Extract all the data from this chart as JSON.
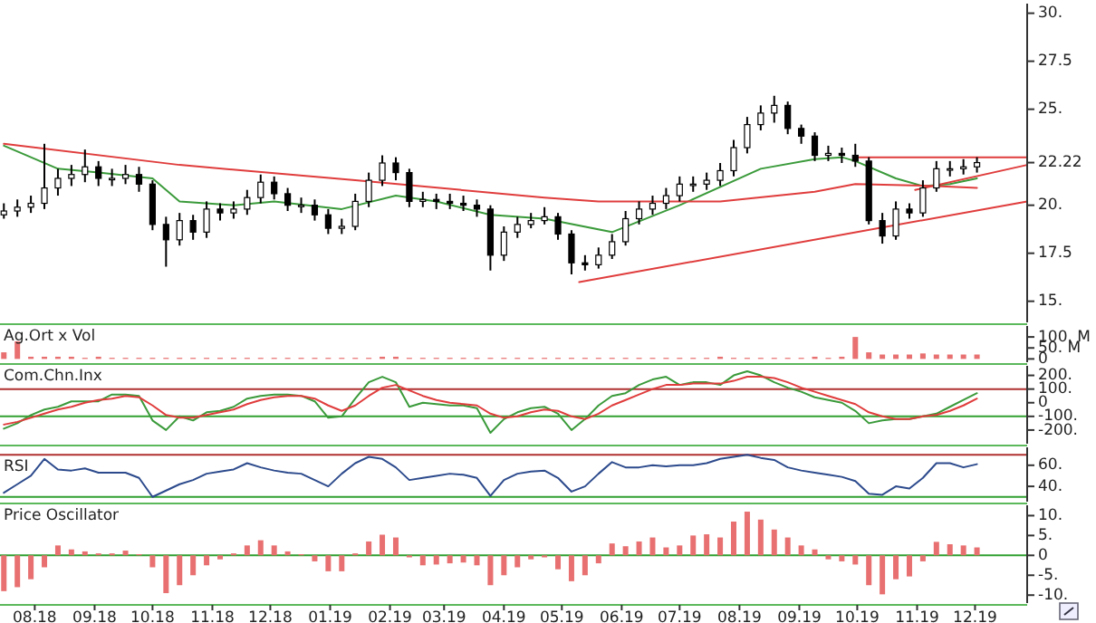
{
  "chart_data": [
    {
      "type": "candlestick",
      "color": "#000000",
      "tick_labels": "y",
      "xlim": [
        "2018-07-14",
        "2019-12-28"
      ],
      "ylim": [
        13.9,
        30.5
      ],
      "yticks": [
        {
          "value": 30,
          "label": "30."
        },
        27.5,
        {
          "value": 25,
          "label": "25."
        },
        22.22,
        {
          "value": 20,
          "label": "20."
        },
        17.5,
        {
          "value": 15,
          "label": "15."
        }
      ],
      "x": [
        "2018-07-16",
        "2018-07-23",
        "2018-07-30",
        "2018-08-06",
        "2018-08-13",
        "2018-08-20",
        "2018-08-27",
        "2018-09-03",
        "2018-09-10",
        "2018-09-17",
        "2018-09-24",
        "2018-10-01",
        "2018-10-08",
        "2018-10-15",
        "2018-10-22",
        "2018-10-29",
        "2018-11-05",
        "2018-11-12",
        "2018-11-19",
        "2018-11-26",
        "2018-12-03",
        "2018-12-10",
        "2018-12-17",
        "2018-12-24",
        "2018-12-31",
        "2019-01-07",
        "2019-01-14",
        "2019-01-21",
        "2019-01-28",
        "2019-02-04",
        "2019-02-11",
        "2019-02-18",
        "2019-02-25",
        "2019-03-04",
        "2019-03-11",
        "2019-03-18",
        "2019-03-25",
        "2019-04-01",
        "2019-04-08",
        "2019-04-15",
        "2019-04-22",
        "2019-04-29",
        "2019-05-06",
        "2019-05-13",
        "2019-05-20",
        "2019-05-27",
        "2019-06-03",
        "2019-06-10",
        "2019-06-17",
        "2019-06-24",
        "2019-07-01",
        "2019-07-08",
        "2019-07-15",
        "2019-07-22",
        "2019-07-29",
        "2019-08-05",
        "2019-08-12",
        "2019-08-19",
        "2019-08-26",
        "2019-09-02",
        "2019-09-09",
        "2019-09-16",
        "2019-09-23",
        "2019-09-30",
        "2019-10-07",
        "2019-10-14",
        "2019-10-21",
        "2019-10-28",
        "2019-11-04",
        "2019-11-11",
        "2019-11-18",
        "2019-11-25",
        "2019-12-02"
      ],
      "ohlc": [
        [
          19.5,
          20.1,
          19.3,
          19.7
        ],
        [
          19.7,
          20.3,
          19.4,
          19.9
        ],
        [
          19.9,
          20.5,
          19.6,
          20.1
        ],
        [
          20.1,
          23.2,
          19.8,
          20.9
        ],
        [
          20.9,
          21.9,
          20.5,
          21.4
        ],
        [
          21.4,
          22.1,
          21.0,
          21.6
        ],
        [
          21.6,
          22.9,
          21.2,
          22.0
        ],
        [
          22.0,
          22.3,
          21.0,
          21.4
        ],
        [
          21.4,
          21.9,
          21.0,
          21.4
        ],
        [
          21.4,
          22.1,
          21.1,
          21.6
        ],
        [
          21.6,
          22.0,
          20.7,
          21.1
        ],
        [
          21.1,
          21.3,
          18.7,
          19.0
        ],
        [
          19.0,
          19.4,
          16.8,
          18.2
        ],
        [
          18.2,
          19.6,
          17.9,
          19.2
        ],
        [
          19.2,
          19.5,
          18.2,
          18.6
        ],
        [
          18.6,
          20.2,
          18.3,
          19.8
        ],
        [
          19.8,
          20.1,
          19.2,
          19.6
        ],
        [
          19.6,
          20.2,
          19.3,
          19.8
        ],
        [
          19.8,
          20.8,
          19.5,
          20.4
        ],
        [
          20.4,
          21.6,
          20.1,
          21.2
        ],
        [
          21.2,
          21.5,
          20.3,
          20.6
        ],
        [
          20.6,
          20.9,
          19.7,
          20.0
        ],
        [
          20.0,
          20.4,
          19.6,
          20.0
        ],
        [
          20.0,
          20.3,
          19.2,
          19.5
        ],
        [
          19.5,
          19.8,
          18.5,
          18.8
        ],
        [
          18.8,
          19.3,
          18.5,
          18.9
        ],
        [
          18.9,
          20.6,
          18.7,
          20.2
        ],
        [
          20.2,
          21.7,
          19.9,
          21.3
        ],
        [
          21.3,
          22.6,
          21.0,
          22.2
        ],
        [
          22.2,
          22.5,
          21.3,
          21.7
        ],
        [
          21.7,
          21.9,
          19.9,
          20.2
        ],
        [
          20.2,
          20.7,
          19.9,
          20.3
        ],
        [
          20.3,
          20.6,
          19.8,
          20.2
        ],
        [
          20.2,
          20.6,
          19.8,
          20.1
        ],
        [
          20.1,
          20.5,
          19.7,
          20.0
        ],
        [
          20.0,
          20.3,
          19.4,
          19.8
        ],
        [
          19.8,
          20.0,
          16.6,
          17.4
        ],
        [
          17.4,
          18.9,
          17.1,
          18.6
        ],
        [
          18.6,
          19.4,
          18.3,
          19.0
        ],
        [
          19.0,
          19.6,
          18.8,
          19.2
        ],
        [
          19.2,
          19.9,
          19.0,
          19.4
        ],
        [
          19.4,
          19.6,
          18.2,
          18.5
        ],
        [
          18.5,
          18.7,
          16.4,
          17.0
        ],
        [
          17.0,
          17.4,
          16.6,
          16.9
        ],
        [
          16.9,
          17.8,
          16.7,
          17.4
        ],
        [
          17.4,
          18.5,
          17.2,
          18.1
        ],
        [
          18.1,
          19.7,
          17.9,
          19.3
        ],
        [
          19.3,
          20.2,
          19.0,
          19.8
        ],
        [
          19.8,
          20.5,
          19.5,
          20.1
        ],
        [
          20.1,
          20.9,
          19.8,
          20.5
        ],
        [
          20.5,
          21.5,
          20.2,
          21.1
        ],
        [
          21.1,
          21.5,
          20.7,
          21.1
        ],
        [
          21.1,
          21.7,
          20.8,
          21.3
        ],
        [
          21.3,
          22.2,
          21.0,
          21.8
        ],
        [
          21.8,
          23.4,
          21.5,
          23.0
        ],
        [
          23.0,
          24.6,
          22.7,
          24.2
        ],
        [
          24.2,
          25.2,
          23.9,
          24.8
        ],
        [
          24.8,
          25.7,
          24.3,
          25.2
        ],
        [
          25.2,
          25.4,
          23.7,
          24.0
        ],
        [
          24.0,
          24.2,
          23.2,
          23.6
        ],
        [
          23.6,
          23.8,
          22.3,
          22.6
        ],
        [
          22.6,
          23.1,
          22.3,
          22.7
        ],
        [
          22.7,
          23.0,
          22.2,
          22.6
        ],
        [
          22.6,
          23.2,
          22.0,
          22.3
        ],
        [
          22.3,
          22.5,
          19.0,
          19.2
        ],
        [
          19.2,
          19.6,
          18.0,
          18.4
        ],
        [
          18.4,
          20.2,
          18.2,
          19.8
        ],
        [
          19.8,
          20.1,
          19.3,
          19.6
        ],
        [
          19.6,
          21.3,
          19.4,
          20.9
        ],
        [
          20.9,
          22.3,
          20.7,
          21.9
        ],
        [
          21.9,
          22.3,
          21.5,
          21.9
        ],
        [
          21.9,
          22.4,
          21.6,
          22.0
        ],
        [
          22.0,
          22.5,
          21.7,
          22.22
        ]
      ],
      "series": [
        {
          "type": "line",
          "color": "#3a9a3a",
          "x": [
            "2018-07-16",
            "2018-08-13",
            "2018-09-03",
            "2018-10-01",
            "2018-10-15",
            "2018-11-12",
            "2018-12-03",
            "2019-01-07",
            "2019-02-04",
            "2019-02-25",
            "2019-03-25",
            "2019-04-22",
            "2019-05-27",
            "2019-07-01",
            "2019-08-12",
            "2019-09-09",
            "2019-09-23",
            "2019-09-30",
            "2019-10-21",
            "2019-11-04",
            "2019-11-18",
            "2019-12-02"
          ],
          "values": [
            23.1,
            21.9,
            21.7,
            21.4,
            20.2,
            20.0,
            20.2,
            19.8,
            20.5,
            20.2,
            19.5,
            19.3,
            18.6,
            20.0,
            21.9,
            22.4,
            22.5,
            22.3,
            21.4,
            21.0,
            21.1,
            21.4
          ]
        },
        {
          "type": "line",
          "color": "#e03c3c",
          "x": [
            "2018-07-16",
            "2018-10-15",
            "2019-01-14",
            "2019-04-22",
            "2019-05-20",
            "2019-07-22",
            "2019-09-09",
            "2019-09-30",
            "2019-11-11",
            "2019-12-02"
          ],
          "values": [
            23.2,
            22.1,
            21.3,
            20.4,
            20.2,
            20.2,
            20.7,
            21.1,
            21.0,
            20.9
          ]
        },
        {
          "type": "line",
          "color": "#e03c3c",
          "x": [
            "2019-05-10",
            "2019-12-28"
          ],
          "values": [
            16.0,
            20.2
          ]
        },
        {
          "type": "line",
          "color": "#e03c3c",
          "x": [
            "2019-10-31",
            "2019-12-28"
          ],
          "values": [
            20.8,
            22.1
          ]
        },
        {
          "type": "line",
          "color": "#e03c3c",
          "x": [
            "2019-09-29",
            "2019-12-28"
          ],
          "values": [
            22.5,
            22.5
          ]
        }
      ]
    },
    {
      "type": "bar",
      "title": "Ag.Ort x Vol",
      "color": "#e87070",
      "tick_labels": "y",
      "xlim": [
        "2018-07-14",
        "2019-12-28"
      ],
      "ylim": [
        -15,
        150
      ],
      "yticks": [
        0,
        {
          "value": 50,
          "label": "50. M"
        },
        {
          "value": 100,
          "label": "100. M"
        }
      ],
      "x": [
        "2018-07-16",
        "2018-07-23",
        "2018-07-30",
        "2018-08-06",
        "2018-08-13",
        "2018-08-20",
        "2018-08-27",
        "2018-09-03",
        "2018-09-10",
        "2018-09-17",
        "2018-09-24",
        "2018-10-01",
        "2018-10-08",
        "2018-10-15",
        "2018-10-22",
        "2018-10-29",
        "2018-11-05",
        "2018-11-12",
        "2018-11-19",
        "2018-11-26",
        "2018-12-03",
        "2018-12-10",
        "2018-12-17",
        "2018-12-24",
        "2018-12-31",
        "2019-01-07",
        "2019-01-14",
        "2019-01-21",
        "2019-01-28",
        "2019-02-04",
        "2019-02-11",
        "2019-02-18",
        "2019-02-25",
        "2019-03-04",
        "2019-03-11",
        "2019-03-18",
        "2019-03-25",
        "2019-04-01",
        "2019-04-08",
        "2019-04-15",
        "2019-04-22",
        "2019-04-29",
        "2019-05-06",
        "2019-05-13",
        "2019-05-20",
        "2019-05-27",
        "2019-06-03",
        "2019-06-10",
        "2019-06-17",
        "2019-06-24",
        "2019-07-01",
        "2019-07-08",
        "2019-07-15",
        "2019-07-22",
        "2019-07-29",
        "2019-08-05",
        "2019-08-12",
        "2019-08-19",
        "2019-08-26",
        "2019-09-02",
        "2019-09-09",
        "2019-09-16",
        "2019-09-23",
        "2019-09-30",
        "2019-10-07",
        "2019-10-14",
        "2019-10-21",
        "2019-10-28",
        "2019-11-04",
        "2019-11-11",
        "2019-11-18",
        "2019-11-25",
        "2019-12-02"
      ],
      "values": [
        30,
        80,
        10,
        10,
        10,
        10,
        5,
        10,
        5,
        5,
        5,
        5,
        5,
        5,
        5,
        5,
        5,
        5,
        5,
        5,
        5,
        5,
        5,
        5,
        5,
        5,
        5,
        5,
        10,
        10,
        5,
        5,
        5,
        5,
        5,
        5,
        5,
        5,
        5,
        5,
        5,
        5,
        5,
        5,
        5,
        5,
        5,
        5,
        5,
        5,
        5,
        5,
        5,
        10,
        5,
        5,
        5,
        5,
        5,
        5,
        10,
        5,
        10,
        100,
        30,
        20,
        20,
        20,
        25,
        20,
        20,
        20,
        20
      ]
    },
    {
      "type": "line",
      "title": "Com.Chn.Inx",
      "tick_labels": "y",
      "xlim": [
        "2018-07-14",
        "2019-12-28"
      ],
      "ylim": [
        -300,
        270
      ],
      "yticks": [
        {
          "value": 200,
          "label": "200."
        },
        {
          "value": 100,
          "label": "100."
        },
        0,
        {
          "value": -100,
          "label": "-100."
        },
        {
          "value": -200,
          "label": "-200."
        }
      ],
      "ref_lines": [
        {
          "axis": "y",
          "value": 100,
          "color": "#b03030"
        },
        {
          "axis": "y",
          "value": -100,
          "color": "#30a030"
        }
      ],
      "x": [
        "2018-07-16",
        "2018-07-23",
        "2018-07-30",
        "2018-08-06",
        "2018-08-13",
        "2018-08-20",
        "2018-08-27",
        "2018-09-03",
        "2018-09-10",
        "2018-09-17",
        "2018-09-24",
        "2018-10-01",
        "2018-10-08",
        "2018-10-15",
        "2018-10-22",
        "2018-10-29",
        "2018-11-05",
        "2018-11-12",
        "2018-11-19",
        "2018-11-26",
        "2018-12-03",
        "2018-12-10",
        "2018-12-17",
        "2018-12-24",
        "2018-12-31",
        "2019-01-07",
        "2019-01-14",
        "2019-01-21",
        "2019-01-28",
        "2019-02-04",
        "2019-02-11",
        "2019-02-18",
        "2019-02-25",
        "2019-03-04",
        "2019-03-11",
        "2019-03-18",
        "2019-03-25",
        "2019-04-01",
        "2019-04-08",
        "2019-04-15",
        "2019-04-22",
        "2019-04-29",
        "2019-05-06",
        "2019-05-13",
        "2019-05-20",
        "2019-05-27",
        "2019-06-03",
        "2019-06-10",
        "2019-06-17",
        "2019-06-24",
        "2019-07-01",
        "2019-07-08",
        "2019-07-15",
        "2019-07-22",
        "2019-07-29",
        "2019-08-05",
        "2019-08-12",
        "2019-08-19",
        "2019-08-26",
        "2019-09-02",
        "2019-09-09",
        "2019-09-16",
        "2019-09-23",
        "2019-09-30",
        "2019-10-07",
        "2019-10-14",
        "2019-10-21",
        "2019-10-28",
        "2019-11-04",
        "2019-11-11",
        "2019-11-18",
        "2019-11-25",
        "2019-12-02"
      ],
      "series": [
        {
          "color": "#3a9a3a",
          "values": [
            -190,
            -150,
            -90,
            -50,
            -30,
            10,
            10,
            10,
            60,
            60,
            50,
            -130,
            -200,
            -100,
            -130,
            -70,
            -60,
            -30,
            30,
            50,
            60,
            60,
            50,
            10,
            -110,
            -100,
            30,
            150,
            190,
            150,
            -30,
            0,
            -10,
            -20,
            -20,
            -40,
            -220,
            -120,
            -70,
            -40,
            -30,
            -80,
            -200,
            -120,
            -20,
            50,
            70,
            130,
            170,
            190,
            130,
            150,
            150,
            130,
            200,
            230,
            200,
            150,
            110,
            80,
            40,
            20,
            0,
            -60,
            -150,
            -130,
            -120,
            -120,
            -100,
            -80,
            -30,
            20,
            70
          ]
        },
        {
          "color": "#e03c3c",
          "values": [
            -160,
            -140,
            -110,
            -80,
            -50,
            -30,
            0,
            20,
            30,
            50,
            40,
            -20,
            -90,
            -110,
            -110,
            -90,
            -70,
            -50,
            -10,
            20,
            40,
            50,
            50,
            30,
            -20,
            -60,
            -20,
            50,
            110,
            130,
            90,
            50,
            20,
            0,
            -10,
            -20,
            -80,
            -110,
            -100,
            -70,
            -50,
            -60,
            -100,
            -120,
            -80,
            -20,
            20,
            60,
            100,
            130,
            130,
            140,
            140,
            140,
            160,
            190,
            190,
            180,
            150,
            110,
            80,
            50,
            20,
            -10,
            -70,
            -100,
            -120,
            -120,
            -100,
            -90,
            -60,
            -20,
            30
          ]
        }
      ]
    },
    {
      "type": "line",
      "title": "RSI",
      "tick_labels": "y",
      "xlim": [
        "2018-07-14",
        "2019-12-28"
      ],
      "ylim": [
        25.5,
        77
      ],
      "yticks": [
        {
          "value": 60,
          "label": "60."
        },
        {
          "value": 40,
          "label": "40."
        }
      ],
      "ref_lines": [
        {
          "axis": "y",
          "value": 70,
          "color": "#b03030"
        },
        {
          "axis": "y",
          "value": 30,
          "color": "#30a030"
        }
      ],
      "x": [
        "2018-07-16",
        "2018-07-23",
        "2018-07-30",
        "2018-08-06",
        "2018-08-13",
        "2018-08-20",
        "2018-08-27",
        "2018-09-03",
        "2018-09-10",
        "2018-09-17",
        "2018-09-24",
        "2018-10-01",
        "2018-10-08",
        "2018-10-15",
        "2018-10-22",
        "2018-10-29",
        "2018-11-05",
        "2018-11-12",
        "2018-11-19",
        "2018-11-26",
        "2018-12-03",
        "2018-12-10",
        "2018-12-17",
        "2018-12-24",
        "2018-12-31",
        "2019-01-07",
        "2019-01-14",
        "2019-01-21",
        "2019-01-28",
        "2019-02-04",
        "2019-02-11",
        "2019-02-18",
        "2019-02-25",
        "2019-03-04",
        "2019-03-11",
        "2019-03-18",
        "2019-03-25",
        "2019-04-01",
        "2019-04-08",
        "2019-04-15",
        "2019-04-22",
        "2019-04-29",
        "2019-05-06",
        "2019-05-13",
        "2019-05-20",
        "2019-05-27",
        "2019-06-03",
        "2019-06-10",
        "2019-06-17",
        "2019-06-24",
        "2019-07-01",
        "2019-07-08",
        "2019-07-15",
        "2019-07-22",
        "2019-07-29",
        "2019-08-05",
        "2019-08-12",
        "2019-08-19",
        "2019-08-26",
        "2019-09-02",
        "2019-09-09",
        "2019-09-16",
        "2019-09-23",
        "2019-09-30",
        "2019-10-07",
        "2019-10-14",
        "2019-10-21",
        "2019-10-28",
        "2019-11-04",
        "2019-11-11",
        "2019-11-18",
        "2019-11-25",
        "2019-12-02"
      ],
      "series": [
        {
          "color": "#2c4a8c",
          "values": [
            34,
            42,
            50,
            66,
            56,
            55,
            57,
            53,
            53,
            53,
            48,
            30,
            36,
            42,
            46,
            52,
            54,
            56,
            62,
            58,
            55,
            53,
            52,
            46,
            40,
            52,
            62,
            68,
            66,
            58,
            46,
            48,
            50,
            52,
            51,
            48,
            31,
            46,
            52,
            54,
            55,
            48,
            35,
            40,
            52,
            63,
            58,
            58,
            60,
            59,
            60,
            60,
            62,
            66,
            68,
            70,
            67,
            65,
            58,
            55,
            53,
            51,
            49,
            45,
            33,
            32,
            40,
            38,
            48,
            62,
            62,
            58,
            61
          ]
        }
      ]
    },
    {
      "type": "bar",
      "title": "Price Oscillator",
      "color": "#e87070",
      "xlim": [
        "2018-07-14",
        "2019-12-28"
      ],
      "ylim": [
        -12,
        12.6
      ],
      "yticks": [
        {
          "value": 10,
          "label": "10."
        },
        {
          "value": 5,
          "label": "5."
        },
        0,
        {
          "value": -5,
          "label": "-5."
        },
        {
          "value": -10,
          "label": "-10."
        }
      ],
      "ref_lines": [
        {
          "axis": "y",
          "value": 0,
          "color": "#30a030"
        }
      ],
      "xticks": [
        {
          "value": "2018-08-01",
          "label": "08.18"
        },
        {
          "value": "2018-09-01",
          "label": "09.18"
        },
        {
          "value": "2018-10-01",
          "label": "10.18"
        },
        {
          "value": "2018-11-01",
          "label": "11.18"
        },
        {
          "value": "2018-12-01",
          "label": "12.18"
        },
        {
          "value": "2019-01-01",
          "label": "01.19"
        },
        {
          "value": "2019-02-01",
          "label": "02.19"
        },
        {
          "value": "2019-03-01",
          "label": "03.19"
        },
        {
          "value": "2019-04-01",
          "label": "04.19"
        },
        {
          "value": "2019-05-01",
          "label": "05.19"
        },
        {
          "value": "2019-06-01",
          "label": "06.19"
        },
        {
          "value": "2019-07-01",
          "label": "07.19"
        },
        {
          "value": "2019-08-01",
          "label": "08.19"
        },
        {
          "value": "2019-09-01",
          "label": "09.19"
        },
        {
          "value": "2019-10-01",
          "label": "10.19"
        },
        {
          "value": "2019-11-01",
          "label": "11.19"
        },
        {
          "value": "2019-12-01",
          "label": "12.19"
        }
      ],
      "x": [
        "2018-07-16",
        "2018-07-23",
        "2018-07-30",
        "2018-08-06",
        "2018-08-13",
        "2018-08-20",
        "2018-08-27",
        "2018-09-03",
        "2018-09-10",
        "2018-09-17",
        "2018-09-24",
        "2018-10-01",
        "2018-10-08",
        "2018-10-15",
        "2018-10-22",
        "2018-10-29",
        "2018-11-05",
        "2018-11-12",
        "2018-11-19",
        "2018-11-26",
        "2018-12-03",
        "2018-12-10",
        "2018-12-17",
        "2018-12-24",
        "2018-12-31",
        "2019-01-07",
        "2019-01-14",
        "2019-01-21",
        "2019-01-28",
        "2019-02-04",
        "2019-02-11",
        "2019-02-18",
        "2019-02-25",
        "2019-03-04",
        "2019-03-11",
        "2019-03-18",
        "2019-03-25",
        "2019-04-01",
        "2019-04-08",
        "2019-04-15",
        "2019-04-22",
        "2019-04-29",
        "2019-05-06",
        "2019-05-13",
        "2019-05-20",
        "2019-05-27",
        "2019-06-03",
        "2019-06-10",
        "2019-06-17",
        "2019-06-24",
        "2019-07-01",
        "2019-07-08",
        "2019-07-15",
        "2019-07-22",
        "2019-07-29",
        "2019-08-05",
        "2019-08-12",
        "2019-08-19",
        "2019-08-26",
        "2019-09-02",
        "2019-09-09",
        "2019-09-16",
        "2019-09-23",
        "2019-09-30",
        "2019-10-07",
        "2019-10-14",
        "2019-10-21",
        "2019-10-28",
        "2019-11-04",
        "2019-11-11",
        "2019-11-18",
        "2019-11-25",
        "2019-12-02"
      ],
      "values": [
        -9,
        -8,
        -6,
        -3,
        2.5,
        1.5,
        1,
        0.5,
        0.5,
        1.2,
        0.3,
        -3,
        -9.5,
        -7.5,
        -5,
        -2.5,
        -1,
        0.5,
        2.5,
        3.8,
        2.5,
        1,
        0.3,
        -1.5,
        -4,
        -4,
        0.5,
        3.5,
        5.2,
        4.5,
        -0.5,
        -2.5,
        -2.3,
        -2,
        -1.8,
        -2.5,
        -7.5,
        -5,
        -3,
        -1,
        -0.5,
        -3.5,
        -6.5,
        -5,
        -2,
        3,
        2.3,
        3.5,
        4.5,
        2,
        2.5,
        5,
        5.3,
        4.5,
        8.5,
        11,
        9,
        6.5,
        4.5,
        2.5,
        1.5,
        -1,
        -1.5,
        -2.3,
        -7.5,
        -9.8,
        -6,
        -5.3,
        -1.5,
        3.4,
        2.8,
        2.5,
        2
      ]
    }
  ]
}
